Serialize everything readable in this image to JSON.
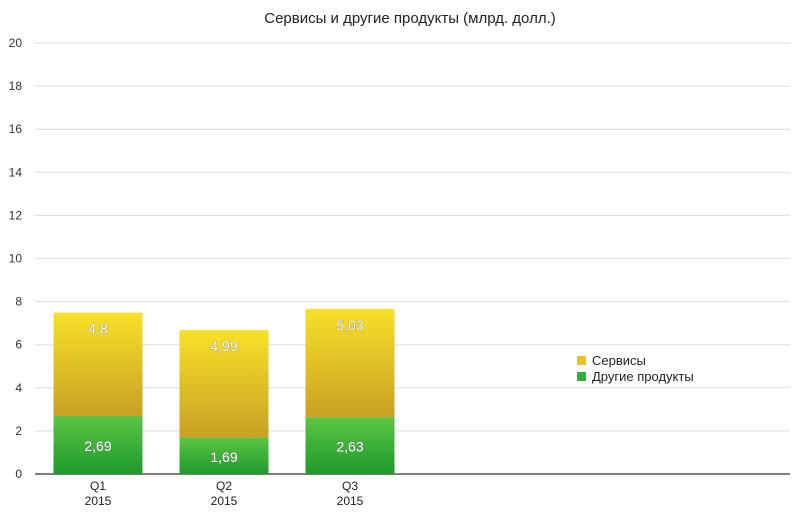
{
  "chart_data": {
    "type": "bar",
    "stacked": true,
    "title": "Сервисы и другие продукты (млрд. долл.)",
    "categories": [
      [
        "Q1",
        "2015"
      ],
      [
        "Q2",
        "2015"
      ],
      [
        "Q3",
        "2015"
      ]
    ],
    "series": [
      {
        "name": "Другие продукты",
        "values": [
          2.69,
          1.69,
          2.63
        ],
        "labels": [
          "2,69",
          "1,69",
          "2,63"
        ],
        "color_top": "#5cc544",
        "color_bottom": "#1e9a2c"
      },
      {
        "name": "Сервисы",
        "values": [
          4.8,
          4.99,
          5.03
        ],
        "labels": [
          "4,8",
          "4,99",
          "5,03"
        ],
        "color_top": "#f7e128",
        "color_bottom": "#c9a025"
      }
    ],
    "ylim": [
      0,
      20
    ],
    "yticks": [
      0,
      2,
      4,
      6,
      8,
      10,
      12,
      14,
      16,
      18,
      20
    ],
    "grid": true,
    "legend_position": "right"
  }
}
